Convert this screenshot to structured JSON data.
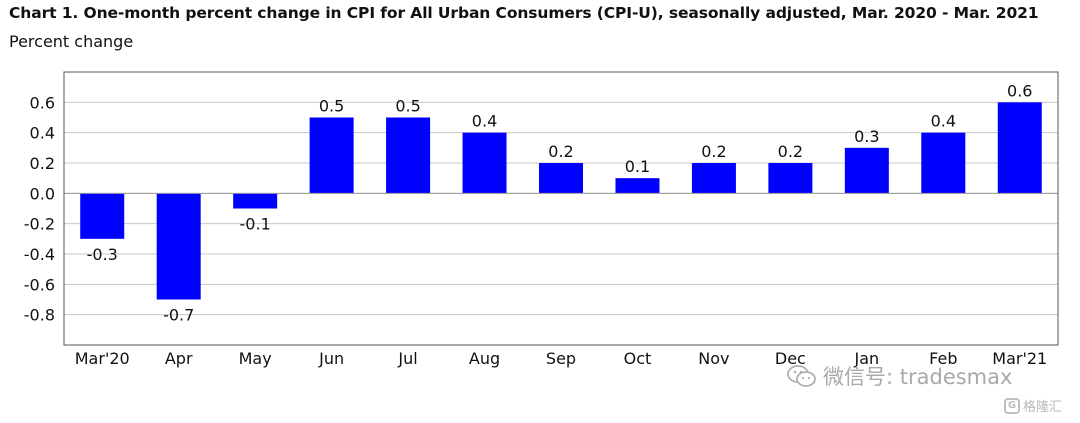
{
  "page": {
    "title": "Chart 1. One-month percent change in CPI for All Urban Consumers (CPI-U), seasonally adjusted, Mar. 2020 - Mar. 2021",
    "subtitle": "Percent change"
  },
  "watermark": {
    "text": "微信号: tradesmax",
    "icon": "wechat-icon",
    "logo_text": "格隆汇",
    "logo_icon": "gelonghui-logo-icon"
  },
  "chart_data": {
    "type": "bar",
    "title": "Chart 1. One-month percent change in CPI for All Urban Consumers (CPI-U), seasonally adjusted, Mar. 2020 - Mar. 2021",
    "ylabel": "Percent change",
    "xlabel": "",
    "categories": [
      "Mar'20",
      "Apr",
      "May",
      "Jun",
      "Jul",
      "Aug",
      "Sep",
      "Oct",
      "Nov",
      "Dec",
      "Jan",
      "Feb",
      "Mar'21"
    ],
    "values": [
      -0.3,
      -0.7,
      -0.1,
      0.5,
      0.5,
      0.4,
      0.2,
      0.1,
      0.2,
      0.2,
      0.3,
      0.4,
      0.6
    ],
    "data_labels": [
      "-0.3",
      "-0.7",
      "-0.1",
      "0.5",
      "0.5",
      "0.4",
      "0.2",
      "0.1",
      "0.2",
      "0.2",
      "0.3",
      "0.4",
      "0.6"
    ],
    "ylim": [
      -1.0,
      0.8
    ],
    "yticks": [
      -0.8,
      -0.6,
      -0.4,
      -0.2,
      0.0,
      0.2,
      0.4,
      0.6
    ],
    "ytick_labels": [
      "-0.8",
      "-0.6",
      "-0.4",
      "-0.2",
      "0.0",
      "0.2",
      "0.4",
      "0.6"
    ],
    "grid": true,
    "legend": "none",
    "bar_color": "#0000FF",
    "grid_color": "#c8c8c8"
  }
}
